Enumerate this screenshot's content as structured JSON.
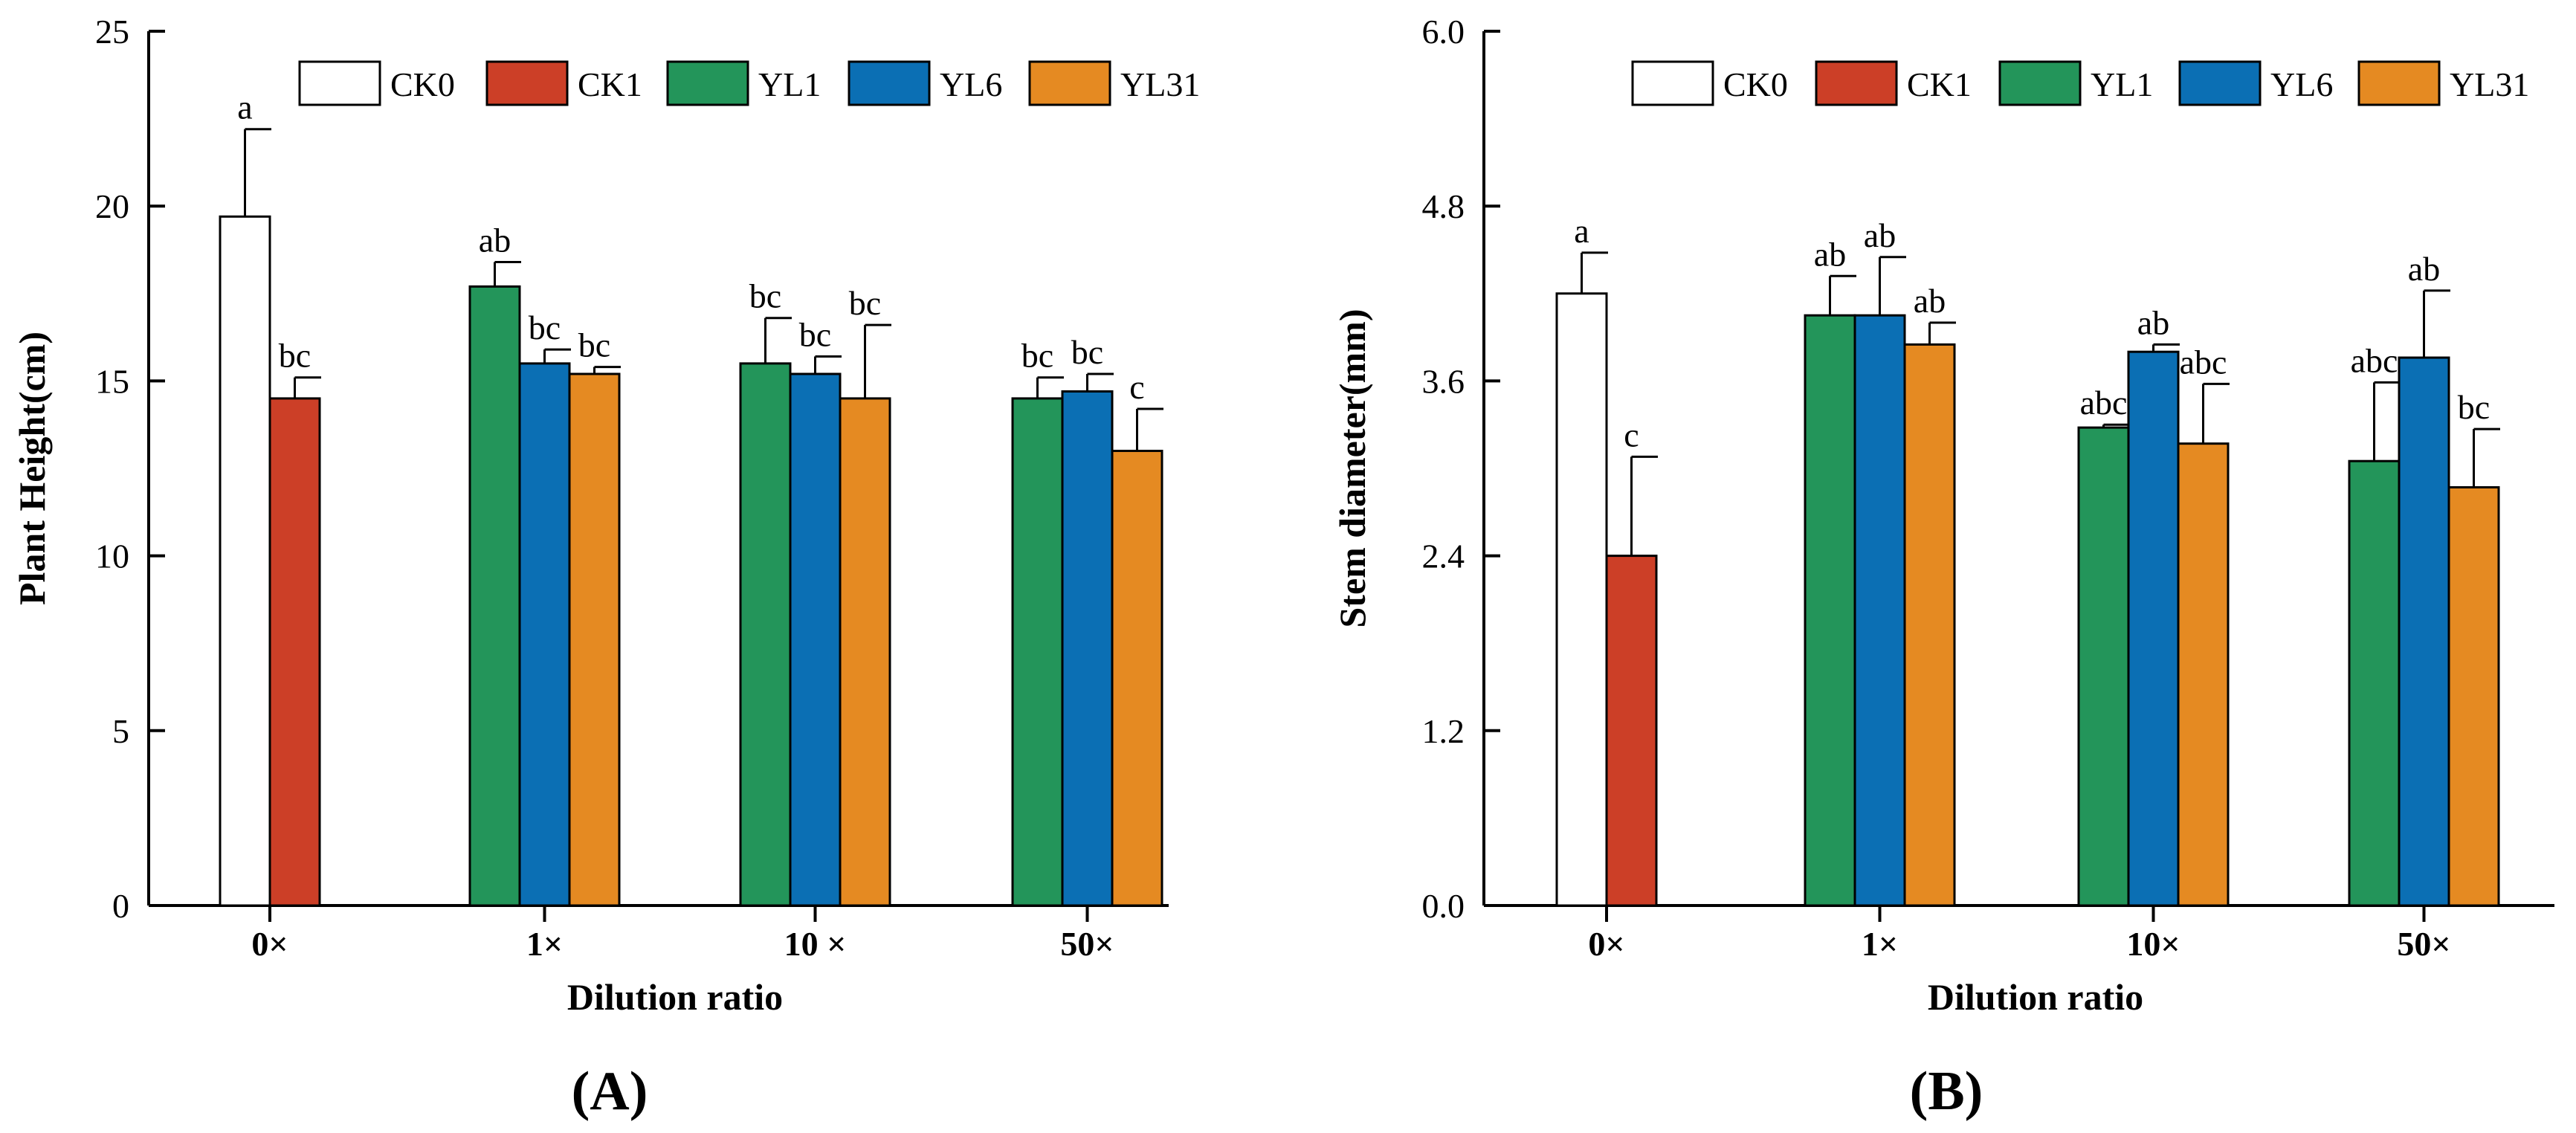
{
  "figure": {
    "panel_labels": [
      "(A)",
      "(B)"
    ]
  },
  "chart_data": [
    {
      "type": "bar",
      "panel": "(A)",
      "title": "",
      "xlabel": "Dilution ratio",
      "ylabel": "Plant  Height(cm)",
      "ylim": [
        0,
        25
      ],
      "yticks": [
        0,
        5,
        10,
        15,
        20,
        25
      ],
      "ytick_labels": [
        "0",
        "5",
        "10",
        "15",
        "20",
        "25"
      ],
      "categories": [
        "0×",
        "1×",
        "10 ×",
        "50×"
      ],
      "legend_position": "top",
      "series": [
        {
          "name": "CK0",
          "color": "#ffffff",
          "values": [
            19.7,
            null,
            null,
            null
          ],
          "errors": [
            2.5,
            null,
            null,
            null
          ],
          "labels": [
            "a",
            null,
            null,
            null
          ]
        },
        {
          "name": "CK1",
          "color": "#cc3f27",
          "values": [
            14.5,
            null,
            null,
            null
          ],
          "errors": [
            0.6,
            null,
            null,
            null
          ],
          "labels": [
            "bc",
            null,
            null,
            null
          ]
        },
        {
          "name": "YL1",
          "color": "#23955a",
          "values": [
            null,
            17.7,
            15.5,
            14.5
          ],
          "errors": [
            null,
            0.7,
            1.3,
            0.6
          ],
          "labels": [
            null,
            "ab",
            "bc",
            "bc"
          ]
        },
        {
          "name": "YL6",
          "color": "#0b6fb4",
          "values": [
            null,
            15.5,
            15.2,
            14.7
          ],
          "errors": [
            null,
            0.4,
            0.5,
            0.5
          ],
          "labels": [
            null,
            "bc",
            "bc",
            "bc"
          ]
        },
        {
          "name": "YL31",
          "color": "#e58a22",
          "values": [
            null,
            15.2,
            14.5,
            13.0
          ],
          "errors": [
            null,
            0.2,
            2.1,
            1.2
          ],
          "labels": [
            null,
            "bc",
            "bc",
            "c"
          ]
        }
      ]
    },
    {
      "type": "bar",
      "panel": "(B)",
      "title": "",
      "xlabel": "Dilution ratio",
      "ylabel": "Stem diameter(mm)",
      "ylim": [
        0,
        6
      ],
      "yticks": [
        0,
        1.2,
        2.4,
        3.6,
        4.8,
        6
      ],
      "ytick_labels": [
        "0.0",
        "1.2",
        "2.4",
        "3.6",
        "4.8",
        "6.0"
      ],
      "categories": [
        "0×",
        "1×",
        "10×",
        "50×"
      ],
      "legend_position": "top",
      "series": [
        {
          "name": "CK0",
          "color": "#ffffff",
          "values": [
            4.2,
            null,
            null,
            null
          ],
          "errors": [
            0.28,
            null,
            null,
            null
          ],
          "labels": [
            "a",
            null,
            null,
            null
          ]
        },
        {
          "name": "CK1",
          "color": "#cc3f27",
          "values": [
            2.4,
            null,
            null,
            null
          ],
          "errors": [
            0.68,
            null,
            null,
            null
          ],
          "labels": [
            "c",
            null,
            null,
            null
          ]
        },
        {
          "name": "YL1",
          "color": "#23955a",
          "values": [
            null,
            4.05,
            3.28,
            3.05
          ],
          "errors": [
            null,
            0.27,
            0.02,
            0.54
          ],
          "labels": [
            null,
            "ab",
            "abc",
            "abc"
          ]
        },
        {
          "name": "YL6",
          "color": "#0b6fb4",
          "values": [
            null,
            4.05,
            3.8,
            3.76
          ],
          "errors": [
            null,
            0.4,
            0.05,
            0.46
          ],
          "labels": [
            null,
            "ab",
            "ab",
            "ab"
          ]
        },
        {
          "name": "YL31",
          "color": "#e58a22",
          "values": [
            null,
            3.85,
            3.17,
            2.87
          ],
          "errors": [
            null,
            0.15,
            0.41,
            0.4
          ],
          "labels": [
            null,
            "ab",
            "abc",
            "bc"
          ]
        }
      ]
    }
  ]
}
